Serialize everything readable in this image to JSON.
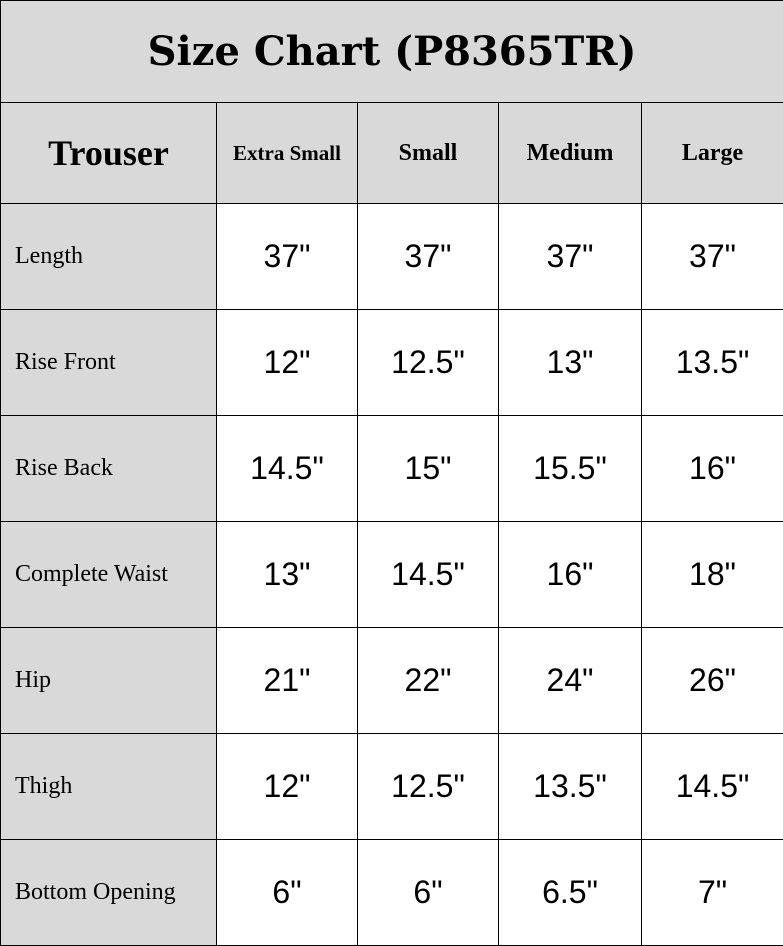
{
  "title": "Size Chart (P8365TR)",
  "header": {
    "corner": "Trouser",
    "sizes": [
      "Extra Small",
      "Small",
      "Medium",
      "Large"
    ]
  },
  "rows": [
    {
      "label": "Length",
      "values": [
        "37\"",
        "37\"",
        "37\"",
        "37\""
      ]
    },
    {
      "label": "Rise Front",
      "values": [
        "12\"",
        "12.5\"",
        "13\"",
        "13.5\""
      ]
    },
    {
      "label": "Rise Back",
      "values": [
        "14.5\"",
        "15\"",
        "15.5\"",
        "16\""
      ]
    },
    {
      "label": "Complete Waist",
      "values": [
        "13\"",
        "14.5\"",
        "16\"",
        "18\""
      ]
    },
    {
      "label": "Hip",
      "values": [
        "21\"",
        "22\"",
        "24\"",
        "26\""
      ]
    },
    {
      "label": "Thigh",
      "values": [
        "12\"",
        "12.5\"",
        "13.5\"",
        "14.5\""
      ]
    },
    {
      "label": "Bottom Opening",
      "values": [
        "6\"",
        "6\"",
        "6.5\"",
        "7\""
      ]
    }
  ],
  "colors": {
    "header_bg": "#d9d9d9",
    "cell_bg": "#ffffff",
    "border": "#000000"
  }
}
